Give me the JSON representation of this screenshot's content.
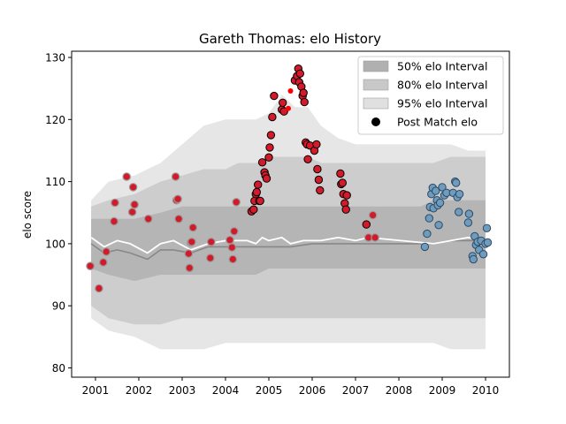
{
  "chart_data": {
    "type": "scatter",
    "title": "Gareth Thomas: elo History",
    "xlabel": "",
    "ylabel": "elo score",
    "xlim": [
      2000.45,
      2010.55
    ],
    "ylim": [
      78.5,
      131
    ],
    "x_ticks": [
      2001,
      2002,
      2003,
      2004,
      2005,
      2006,
      2007,
      2008,
      2009,
      2010
    ],
    "x_tick_labels": [
      "2001",
      "2002",
      "2003",
      "2004",
      "2005",
      "2006",
      "2007",
      "2008",
      "2009",
      "2010"
    ],
    "y_ticks": [
      80,
      90,
      100,
      110,
      120,
      130
    ],
    "y_tick_labels": [
      "80",
      "90",
      "100",
      "110",
      "120",
      "130"
    ],
    "grid": false,
    "legend_position": "top-right",
    "legend": [
      {
        "label": "50% elo Interval",
        "kind": "band",
        "color": "#b0b0b0"
      },
      {
        "label": "80% elo Interval",
        "kind": "band",
        "color": "#c8c8c8"
      },
      {
        "label": "95% elo Interval",
        "kind": "band",
        "color": "#e0e0e0"
      },
      {
        "label": "Post Match elo",
        "kind": "marker",
        "color": "#000000"
      }
    ],
    "colors": {
      "band50": "#b0b0b0",
      "band80": "#c8c8c8",
      "band95": "#e2e2e2",
      "mean_line": "#ffffff",
      "red": "#d21a2a",
      "blue": "#6f9bbd",
      "median_line": "#888888"
    },
    "bands": {
      "x": [
        2000.9,
        2001.3,
        2001.9,
        2002.5,
        2003.0,
        2003.5,
        2004.0,
        2004.3,
        2004.7,
        2005.0,
        2005.3,
        2005.6,
        2005.9,
        2006.2,
        2006.6,
        2007.0,
        2007.5,
        2008.0,
        2008.5,
        2008.8,
        2009.2,
        2009.6,
        2010.0
      ],
      "p50": [
        [
          96,
          104
        ],
        [
          95,
          104
        ],
        [
          94,
          104
        ],
        [
          95,
          105
        ],
        [
          95,
          106
        ],
        [
          95,
          106
        ],
        [
          95,
          106
        ],
        [
          95,
          106
        ],
        [
          95,
          106
        ],
        [
          96,
          106
        ],
        [
          96,
          106
        ],
        [
          96,
          106
        ],
        [
          96,
          106
        ],
        [
          96,
          106
        ],
        [
          96,
          106
        ],
        [
          96,
          106
        ],
        [
          96,
          106
        ],
        [
          96,
          106
        ],
        [
          96,
          106
        ],
        [
          96,
          107
        ],
        [
          96,
          107
        ],
        [
          96,
          107
        ],
        [
          96,
          107
        ]
      ],
      "p80": [
        [
          90,
          106
        ],
        [
          88,
          107
        ],
        [
          87,
          108
        ],
        [
          87,
          110
        ],
        [
          88,
          111
        ],
        [
          88,
          112
        ],
        [
          88,
          112
        ],
        [
          88,
          113
        ],
        [
          88,
          113
        ],
        [
          88,
          114
        ],
        [
          88,
          114
        ],
        [
          88,
          114
        ],
        [
          88,
          114
        ],
        [
          88,
          113
        ],
        [
          88,
          113
        ],
        [
          88,
          113
        ],
        [
          88,
          113
        ],
        [
          88,
          113
        ],
        [
          88,
          113
        ],
        [
          88,
          113
        ],
        [
          88,
          114
        ],
        [
          88,
          114
        ],
        [
          88,
          114
        ]
      ],
      "p95": [
        [
          88,
          107
        ],
        [
          86,
          110
        ],
        [
          85,
          111
        ],
        [
          83,
          113
        ],
        [
          83,
          116
        ],
        [
          83,
          119
        ],
        [
          84,
          120
        ],
        [
          84,
          120
        ],
        [
          84,
          120
        ],
        [
          84,
          121
        ],
        [
          84,
          124
        ],
        [
          84,
          122
        ],
        [
          84,
          122
        ],
        [
          84,
          119
        ],
        [
          84,
          117
        ],
        [
          84,
          116
        ],
        [
          84,
          116
        ],
        [
          84,
          116
        ],
        [
          84,
          116
        ],
        [
          84,
          116
        ],
        [
          83,
          116
        ],
        [
          83,
          115
        ],
        [
          83,
          115
        ]
      ]
    },
    "mean_line": {
      "x": [
        2000.9,
        2001.2,
        2001.5,
        2001.8,
        2002.2,
        2002.5,
        2002.8,
        2003.2,
        2003.6,
        2004.0,
        2004.5,
        2004.7,
        2004.85,
        2005.0,
        2005.3,
        2005.5,
        2005.8,
        2006.2,
        2006.6,
        2007.0,
        2007.3,
        2008.8,
        2009.2,
        2009.6,
        2010.0
      ],
      "y": [
        101,
        99.5,
        100.5,
        100,
        98.5,
        100,
        100.5,
        99,
        100,
        100.5,
        100.5,
        100,
        101,
        100.5,
        101,
        100,
        100.5,
        100.5,
        101,
        100.5,
        101,
        100,
        100.5,
        101,
        100.5
      ]
    },
    "median_line": {
      "x": [
        2000.9,
        2001.2,
        2001.5,
        2001.8,
        2002.2,
        2002.5,
        2002.8,
        2003.2,
        2003.6,
        2004.0,
        2004.7,
        2005.0,
        2005.5,
        2006.0,
        2006.5,
        2007.0,
        2007.5,
        2008.0,
        2008.8,
        2009.2,
        2009.6,
        2010.0
      ],
      "y": [
        100,
        98.5,
        99,
        98.5,
        97.5,
        99,
        99,
        98.5,
        99.5,
        99.5,
        99.5,
        99.5,
        99.5,
        100,
        100,
        100,
        100,
        100,
        100,
        100.5,
        100.5,
        100.5
      ]
    },
    "series": [
      {
        "style": "faded-red",
        "points": [
          [
            2000.88,
            96.4
          ],
          [
            2001.08,
            92.8
          ],
          [
            2001.18,
            97.0
          ],
          [
            2001.25,
            98.7
          ],
          [
            2001.43,
            103.6
          ],
          [
            2001.45,
            106.6
          ],
          [
            2001.72,
            110.8
          ],
          [
            2001.85,
            105.1
          ],
          [
            2001.87,
            109.1
          ],
          [
            2001.9,
            106.3
          ],
          [
            2002.22,
            104.0
          ],
          [
            2002.85,
            110.8
          ],
          [
            2002.87,
            107.0
          ],
          [
            2002.9,
            107.2
          ],
          [
            2002.92,
            104.0
          ],
          [
            2003.15,
            98.4
          ],
          [
            2003.17,
            96.1
          ],
          [
            2003.2,
            100.2
          ],
          [
            2003.22,
            100.3
          ],
          [
            2003.25,
            102.6
          ],
          [
            2003.65,
            97.7
          ],
          [
            2003.67,
            100.3
          ],
          [
            2004.1,
            100.6
          ],
          [
            2004.15,
            99.4
          ],
          [
            2004.17,
            97.5
          ],
          [
            2004.2,
            102.0
          ],
          [
            2004.25,
            106.7
          ],
          [
            2007.3,
            101.0
          ],
          [
            2007.45,
            101.0
          ],
          [
            2007.4,
            104.6
          ]
        ]
      },
      {
        "style": "red",
        "points": [
          [
            2004.6,
            105.2
          ],
          [
            2004.65,
            105.5
          ],
          [
            2004.67,
            106.9
          ],
          [
            2004.7,
            108.0
          ],
          [
            2004.72,
            108.3
          ],
          [
            2004.75,
            109.5
          ],
          [
            2004.78,
            106.9
          ],
          [
            2004.8,
            106.9
          ],
          [
            2004.85,
            113.1
          ],
          [
            2004.9,
            111.5
          ],
          [
            2004.92,
            111.0
          ],
          [
            2004.95,
            110.5
          ],
          [
            2005.0,
            113.9
          ],
          [
            2005.02,
            115.5
          ],
          [
            2005.05,
            117.5
          ],
          [
            2005.08,
            120.4
          ],
          [
            2005.12,
            123.8
          ],
          [
            2005.3,
            121.6
          ],
          [
            2005.32,
            122.7
          ],
          [
            2005.35,
            121.3
          ],
          [
            2005.6,
            126.3
          ],
          [
            2005.65,
            127.0
          ],
          [
            2005.68,
            128.2
          ],
          [
            2005.7,
            126.0
          ],
          [
            2005.72,
            127.4
          ],
          [
            2005.75,
            125.3
          ],
          [
            2005.78,
            123.8
          ],
          [
            2005.8,
            124.3
          ],
          [
            2005.82,
            122.8
          ],
          [
            2005.85,
            116.3
          ],
          [
            2005.88,
            116.0
          ],
          [
            2005.9,
            113.6
          ],
          [
            2005.95,
            115.8
          ],
          [
            2006.05,
            115.0
          ],
          [
            2006.1,
            116.0
          ],
          [
            2006.12,
            112.0
          ],
          [
            2006.15,
            110.3
          ],
          [
            2006.18,
            108.6
          ],
          [
            2006.65,
            111.3
          ],
          [
            2006.67,
            109.6
          ],
          [
            2006.7,
            109.8
          ],
          [
            2006.72,
            108.0
          ],
          [
            2006.75,
            106.5
          ],
          [
            2006.78,
            105.5
          ],
          [
            2006.8,
            107.8
          ],
          [
            2007.25,
            103.1
          ]
        ]
      },
      {
        "style": "red-dot",
        "points": [
          [
            2005.45,
            121.8
          ],
          [
            2005.5,
            124.6
          ]
        ]
      },
      {
        "style": "blue",
        "points": [
          [
            2008.6,
            99.5
          ],
          [
            2008.65,
            101.6
          ],
          [
            2008.7,
            104.1
          ],
          [
            2008.72,
            105.9
          ],
          [
            2008.75,
            108.0
          ],
          [
            2008.78,
            109.0
          ],
          [
            2008.8,
            105.7
          ],
          [
            2008.85,
            108.5
          ],
          [
            2008.88,
            107.0
          ],
          [
            2008.9,
            106.2
          ],
          [
            2008.92,
            103.0
          ],
          [
            2008.95,
            106.6
          ],
          [
            2009.0,
            109.1
          ],
          [
            2009.05,
            107.8
          ],
          [
            2009.1,
            108.2
          ],
          [
            2009.25,
            108.2
          ],
          [
            2009.3,
            110.0
          ],
          [
            2009.32,
            109.8
          ],
          [
            2009.35,
            107.5
          ],
          [
            2009.38,
            105.1
          ],
          [
            2009.4,
            108.0
          ],
          [
            2009.6,
            103.4
          ],
          [
            2009.62,
            104.8
          ],
          [
            2009.7,
            98.0
          ],
          [
            2009.72,
            97.5
          ],
          [
            2009.75,
            101.2
          ],
          [
            2009.78,
            99.8
          ],
          [
            2009.82,
            100.3
          ],
          [
            2009.85,
            99.0
          ],
          [
            2009.9,
            100.5
          ],
          [
            2009.95,
            98.3
          ],
          [
            2010.0,
            100.0
          ],
          [
            2010.03,
            102.5
          ],
          [
            2010.05,
            100.2
          ]
        ]
      }
    ]
  }
}
